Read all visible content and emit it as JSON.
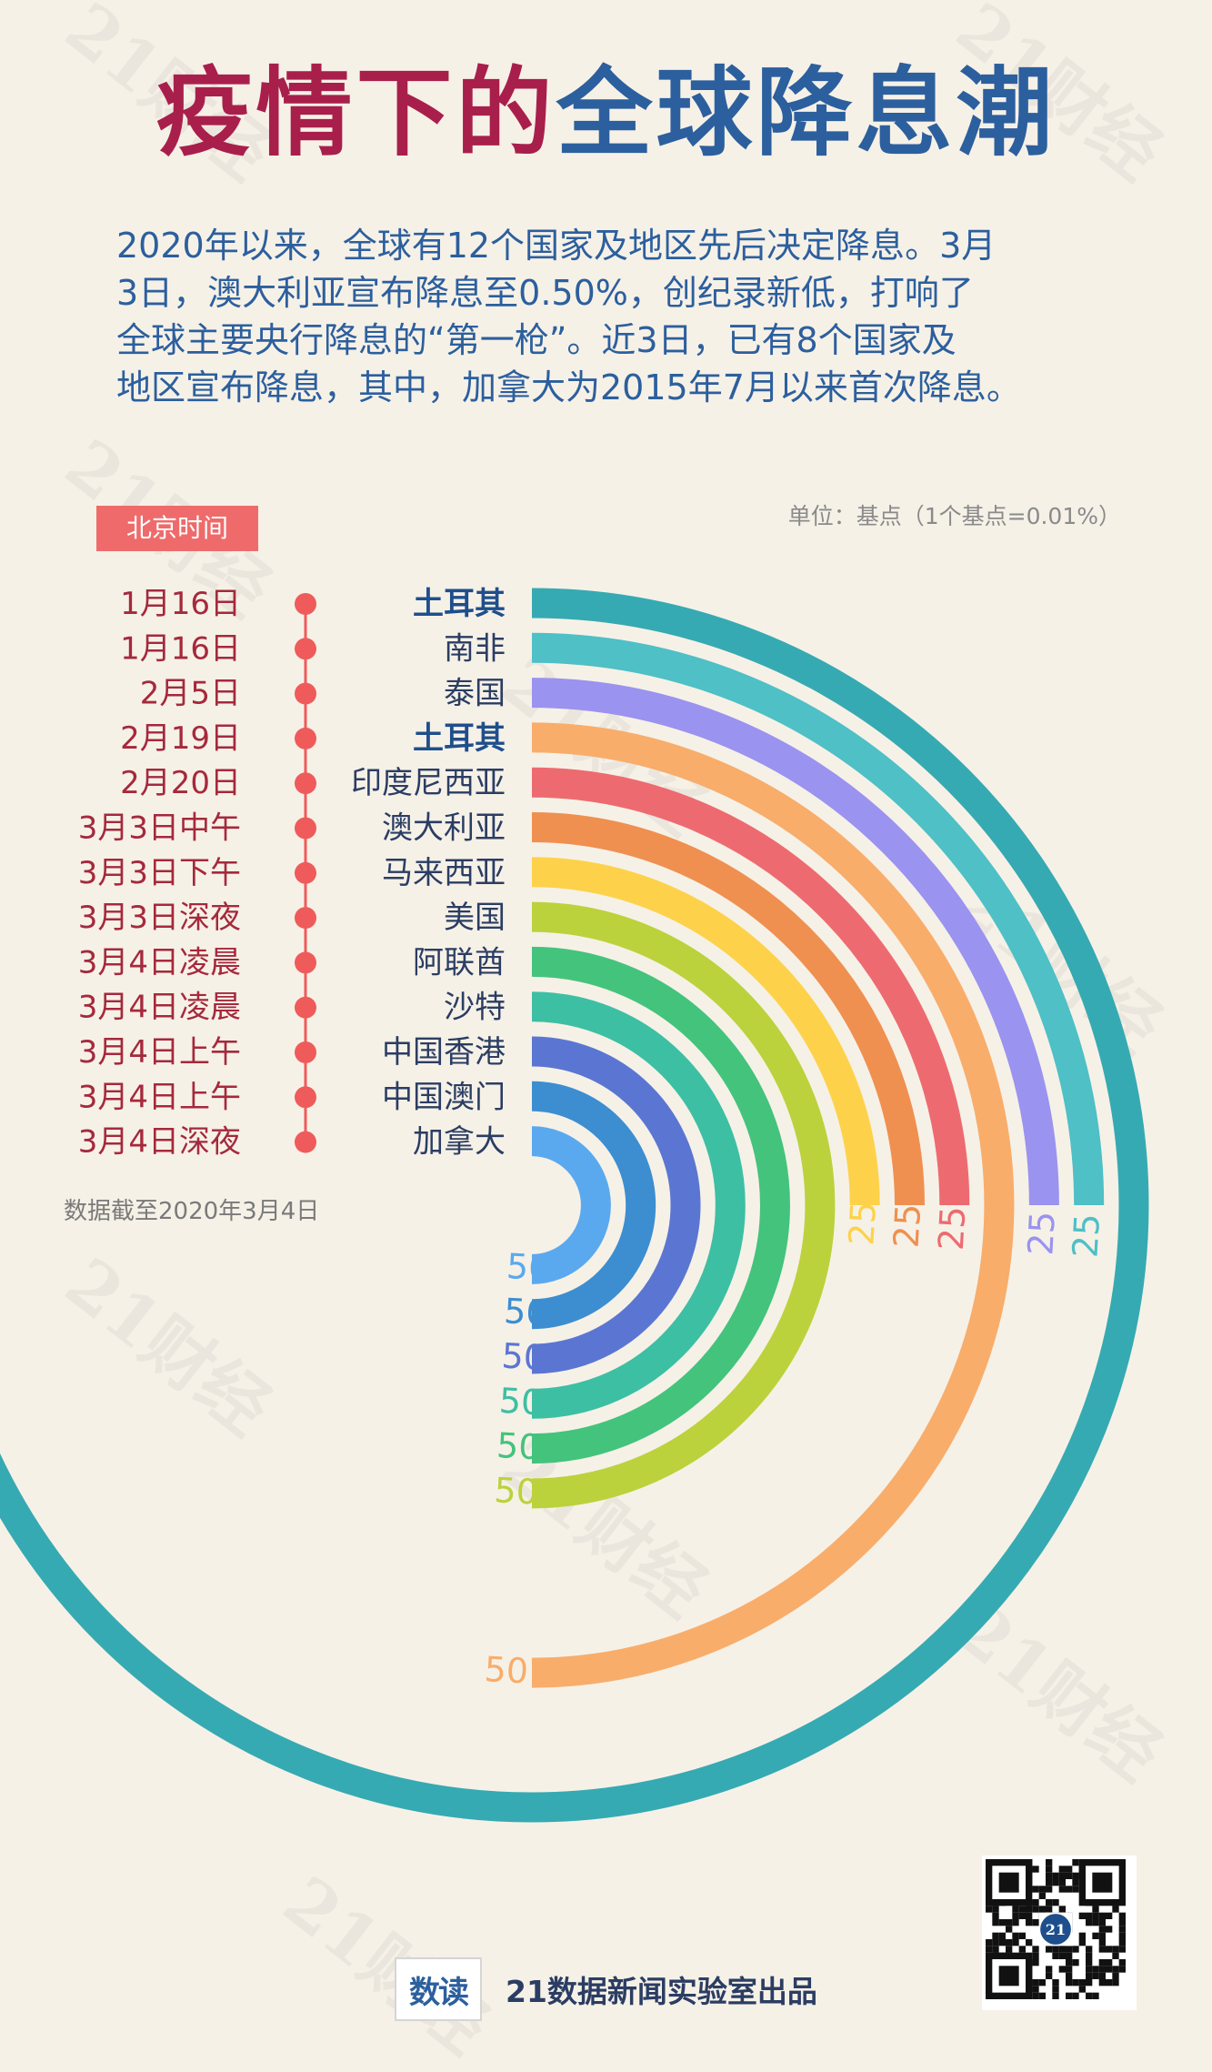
{
  "title_part1": "疫情下的",
  "title_part2": "全球降息潮",
  "intro_lines": [
    "2020年以来，全球有12个国家及地区先后决定降息。3月",
    "3日，澳大利亚宣布降息至0.50%，创纪录新低，打响了",
    "全球主要央行降息的“第一枪”。近3日，已有8个国家及",
    "地区宣布降息，其中，加拿大为2015年7月以来首次降息。"
  ],
  "unit_note": "单位：基点（1个基点=0.01%）",
  "timezone_badge": "北京时间",
  "cutoff_note": "数据截至2020年3月4日",
  "footer_logo_text": "数读",
  "footer_text": "21数据新闻实验室出品",
  "watermark_text": "21财经",
  "qr_badge_text": "21",
  "colors": {
    "title_red": "#a81f4c",
    "title_blue": "#2c5f9e",
    "timeline_dot": "#ef5b5b",
    "date_text": "#a5293c",
    "country_text": "#2b3d63",
    "highlight_text": "#1f4e8c"
  },
  "chart_data": {
    "type": "radial_bar",
    "unit": "基点",
    "entries": [
      {
        "date": "1月16日",
        "country": "土耳其",
        "value": 75,
        "color": "#36aab2",
        "highlight": true
      },
      {
        "date": "1月16日",
        "country": "南非",
        "value": 25,
        "color": "#4ec0c6",
        "highlight": false
      },
      {
        "date": "2月5日",
        "country": "泰国",
        "value": 25,
        "color": "#9a93ef",
        "highlight": false
      },
      {
        "date": "2月19日",
        "country": "土耳其",
        "value": 50,
        "color": "#f8ad6b",
        "highlight": true
      },
      {
        "date": "2月20日",
        "country": "印度尼西亚",
        "value": 25,
        "color": "#ed6b70",
        "highlight": false
      },
      {
        "date": "3月3日中午",
        "country": "澳大利亚",
        "value": 25,
        "color": "#ef9050",
        "highlight": false
      },
      {
        "date": "3月3日下午",
        "country": "马来西亚",
        "value": 25,
        "color": "#fdd24a",
        "highlight": false
      },
      {
        "date": "3月3日深夜",
        "country": "美国",
        "value": 50,
        "color": "#bbd23c",
        "highlight": false
      },
      {
        "date": "3月4日凌晨",
        "country": "阿联酋",
        "value": 50,
        "color": "#44c37c",
        "highlight": false
      },
      {
        "date": "3月4日凌晨",
        "country": "沙特",
        "value": 50,
        "color": "#3dbfa3",
        "highlight": false
      },
      {
        "date": "3月4日上午",
        "country": "中国香港",
        "value": 50,
        "color": "#5b76d2",
        "highlight": false
      },
      {
        "date": "3月4日上午",
        "country": "中国澳门",
        "value": 50,
        "color": "#3c8ed1",
        "highlight": false
      },
      {
        "date": "3月4日深夜",
        "country": "加拿大",
        "value": 50,
        "color": "#5aa9ef",
        "highlight": false
      }
    ]
  }
}
